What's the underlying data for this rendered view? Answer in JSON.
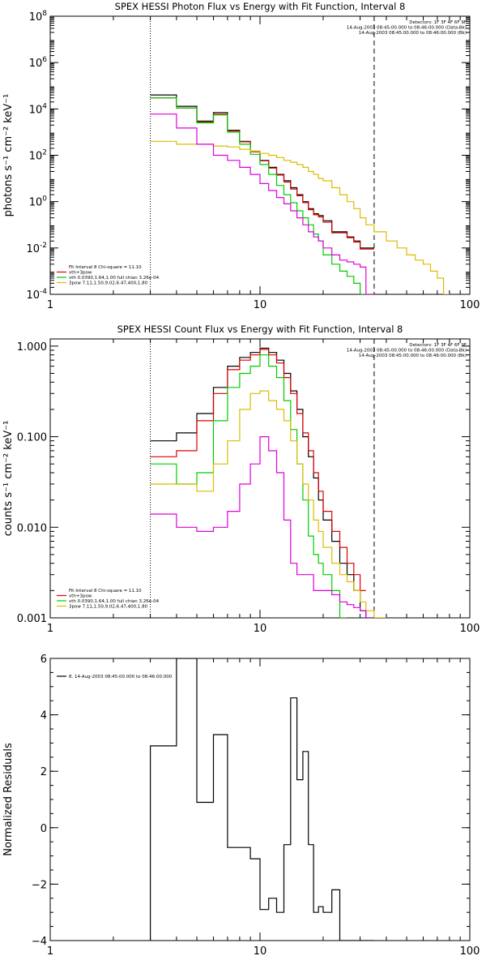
{
  "chart_data": [
    {
      "type": "line",
      "title": "SPEX HESSI Photon Flux vs Energy with Fit Function, Interval 8",
      "ylabel": "photons s⁻¹ cm⁻² keV⁻¹",
      "xscale": "log",
      "yscale": "log",
      "xlim": [
        1,
        100
      ],
      "ylim": [
        0.0001,
        100000000
      ],
      "xticks": [
        {
          "v": 1,
          "t": "1"
        },
        {
          "v": 10,
          "t": "10"
        },
        {
          "v": 100,
          "t": "100"
        }
      ],
      "yticks": [
        {
          "v": 0.0001,
          "b": "10",
          "e": "-4"
        },
        {
          "v": 0.01,
          "b": "10",
          "e": "-2"
        },
        {
          "v": 1,
          "b": "10",
          "e": "0"
        },
        {
          "v": 100,
          "b": "10",
          "e": "2"
        },
        {
          "v": 10000,
          "b": "10",
          "e": "4"
        },
        {
          "v": 1000000,
          "b": "10",
          "e": "6"
        },
        {
          "v": 100000000,
          "b": "10",
          "e": "8"
        }
      ],
      "vlines": [
        {
          "x": 3,
          "style": "dotted"
        },
        {
          "x": 35,
          "style": "dashed"
        }
      ],
      "annotations_right": [
        "Detectors: 1F 3F 4F 6F 9F",
        "14-Aug-2003 08:45:00.000 to 08:46:00.000 (Data-Bk)",
        "14-Aug-2003 08:45:00.000 to 08:46:00.000 (Bk)"
      ],
      "legend": [
        {
          "text": "Fit Interval 8   Chi-square = 11.10",
          "color": ""
        },
        {
          "text": "vth+3pow",
          "color": "#dd0000"
        },
        {
          "text": "vth 0.0390,1.64,1.00  full chian 3.26e-04",
          "color": "#00cc00"
        },
        {
          "text": "3pow 7.11,1.50,9.02,6.47,400,1.80",
          "color": "#ddbb00"
        }
      ],
      "edges": [
        3,
        4,
        5,
        6,
        7,
        8,
        9,
        10,
        11,
        12,
        13,
        14,
        15,
        16,
        17,
        18,
        19,
        20,
        22,
        24,
        26,
        28,
        30,
        32,
        35,
        40,
        45,
        50,
        55,
        60,
        65,
        70,
        75,
        80,
        85
      ],
      "series": [
        {
          "color": "#000000",
          "values": [
            40000,
            13000,
            3000,
            7000,
            1200,
            400,
            150,
            60,
            30,
            15,
            8,
            4,
            2,
            1,
            0.5,
            0.3,
            0.25,
            0.15,
            0.05,
            0.05,
            0.03,
            0.02,
            0.01,
            0.01,
            null,
            null,
            null,
            null,
            null,
            null,
            null,
            null,
            null,
            null
          ]
        },
        {
          "color": "#dd0000",
          "values": [
            30000,
            11000,
            2700,
            6000,
            1100,
            380,
            140,
            58,
            28,
            14,
            7,
            3.5,
            1.8,
            0.9,
            0.45,
            0.27,
            0.22,
            0.13,
            0.045,
            0.045,
            0.028,
            0.018,
            0.009,
            0.009,
            null,
            null,
            null,
            null,
            null,
            null,
            null,
            null,
            null,
            null
          ]
        },
        {
          "color": "#00cc00",
          "values": [
            30000,
            11000,
            2500,
            5500,
            1000,
            300,
            110,
            40,
            15,
            5,
            2,
            0.9,
            0.4,
            0.2,
            0.1,
            0.04,
            0.02,
            0.005,
            0.002,
            0.001,
            0.0006,
            0.0003,
            0.0001,
            null,
            null,
            null,
            null,
            null,
            null,
            null,
            null,
            null,
            null,
            null
          ]
        },
        {
          "color": "#ddbb00",
          "values": [
            400,
            300,
            300,
            250,
            230,
            180,
            150,
            120,
            100,
            80,
            60,
            50,
            40,
            30,
            20,
            15,
            10,
            8,
            4,
            2,
            1,
            0.5,
            0.2,
            0.1,
            0.05,
            0.02,
            0.01,
            0.005,
            0.003,
            0.002,
            0.001,
            0.0005,
            0.0001,
            null
          ]
        },
        {
          "color": "#dd00dd",
          "values": [
            6000,
            1500,
            300,
            100,
            60,
            30,
            15,
            6,
            3,
            1.5,
            0.8,
            0.4,
            0.2,
            0.1,
            0.05,
            0.03,
            0.02,
            0.01,
            0.005,
            0.003,
            0.0025,
            0.002,
            0.0015,
            0.0001,
            null,
            null,
            null,
            null,
            null,
            null,
            null,
            null,
            null,
            null
          ]
        }
      ]
    },
    {
      "type": "line",
      "title": "SPEX HESSI Count Flux vs Energy with Fit Function, Interval 8",
      "ylabel": "counts s⁻¹ cm⁻² keV⁻¹",
      "xscale": "log",
      "yscale": "log",
      "xlim": [
        1,
        100
      ],
      "ylim": [
        0.001,
        1.2
      ],
      "xticks": [
        {
          "v": 1,
          "t": "1"
        },
        {
          "v": 10,
          "t": "10"
        },
        {
          "v": 100,
          "t": "100"
        }
      ],
      "yticks": [
        {
          "v": 0.001,
          "t": "0.001"
        },
        {
          "v": 0.01,
          "t": "0.010"
        },
        {
          "v": 0.1,
          "t": "0.100"
        },
        {
          "v": 1,
          "t": "1.000"
        }
      ],
      "vlines": [
        {
          "x": 3,
          "style": "dotted"
        },
        {
          "x": 35,
          "style": "dashed"
        }
      ],
      "annotations_right": [
        "Detectors: 1F 3F 4F 6F 9F",
        "14-Aug-2003 08:45:00.000 to 08:46:00.000 (Data-Bk)",
        "14-Aug-2003 08:45:00.000 to 08:46:00.000 (Bk)"
      ],
      "legend": [
        {
          "text": "Fit Interval 8   Chi-square = 11.10",
          "color": ""
        },
        {
          "text": "vth+3pow",
          "color": "#dd0000"
        },
        {
          "text": "vth 0.0390,1.64,1.00  full chian 3.26e-04",
          "color": "#00cc00"
        },
        {
          "text": "3pow 7.11,1.50,9.02,6.47,400,1.80",
          "color": "#ddbb00"
        }
      ],
      "edges": [
        3,
        4,
        5,
        6,
        7,
        8,
        9,
        10,
        11,
        12,
        13,
        14,
        15,
        16,
        17,
        18,
        19,
        20,
        22,
        24,
        26,
        28,
        30,
        32,
        35,
        40,
        45,
        50,
        55,
        60,
        65,
        70,
        75,
        80,
        85
      ],
      "series": [
        {
          "color": "#000000",
          "values": [
            0.09,
            0.11,
            0.18,
            0.35,
            0.6,
            0.75,
            0.85,
            0.95,
            0.85,
            0.7,
            0.5,
            0.32,
            0.2,
            0.1,
            0.06,
            0.035,
            0.02,
            0.012,
            0.007,
            0.004,
            0.003,
            0.002,
            0.0012,
            0.001,
            null,
            null,
            null,
            null,
            null,
            null,
            null,
            null,
            null,
            null
          ]
        },
        {
          "color": "#dd0000",
          "values": [
            0.06,
            0.07,
            0.15,
            0.3,
            0.55,
            0.7,
            0.8,
            0.92,
            0.8,
            0.65,
            0.45,
            0.3,
            0.18,
            0.11,
            0.07,
            0.04,
            0.025,
            0.015,
            0.009,
            0.006,
            0.004,
            0.003,
            0.002,
            null,
            null,
            null,
            null,
            null,
            null,
            null,
            null,
            null,
            null,
            null
          ]
        },
        {
          "color": "#00cc00",
          "values": [
            0.05,
            0.03,
            0.04,
            0.15,
            0.35,
            0.5,
            0.6,
            0.8,
            0.6,
            0.45,
            0.25,
            0.12,
            0.05,
            0.02,
            0.008,
            0.005,
            0.004,
            0.003,
            0.002,
            0.001,
            null,
            null,
            null,
            null,
            null,
            null,
            null,
            null,
            null,
            null,
            null,
            null,
            null,
            null
          ]
        },
        {
          "color": "#ddbb00",
          "values": [
            0.03,
            0.03,
            0.025,
            0.05,
            0.09,
            0.2,
            0.3,
            0.32,
            0.25,
            0.2,
            0.15,
            0.09,
            0.05,
            0.03,
            0.02,
            0.012,
            0.009,
            0.006,
            0.004,
            0.003,
            0.0025,
            0.002,
            0.0015,
            0.0012,
            0.001,
            null,
            null,
            null,
            null,
            null,
            null,
            null,
            null,
            null
          ]
        },
        {
          "color": "#dd00dd",
          "values": [
            0.014,
            0.01,
            0.009,
            0.01,
            0.015,
            0.03,
            0.05,
            0.1,
            0.07,
            0.04,
            0.012,
            0.004,
            0.003,
            0.003,
            0.003,
            0.002,
            0.002,
            0.002,
            0.0018,
            0.0015,
            0.0014,
            0.0013,
            0.0012,
            0.001,
            null,
            null,
            null,
            null,
            null,
            null,
            null,
            null,
            null,
            null
          ]
        }
      ]
    },
    {
      "type": "line",
      "title": "",
      "ylabel": "Normalized Residuals",
      "xscale": "log",
      "yscale": "linear",
      "xlim": [
        1,
        100
      ],
      "ylim": [
        -4,
        6
      ],
      "xticks": [
        {
          "v": 1,
          "t": "1"
        },
        {
          "v": 10,
          "t": "10"
        },
        {
          "v": 100,
          "t": "100"
        }
      ],
      "yticks": [
        {
          "v": -4,
          "t": "−4"
        },
        {
          "v": -2,
          "t": "−2"
        },
        {
          "v": 0,
          "t": "0"
        },
        {
          "v": 2,
          "t": "2"
        },
        {
          "v": 4,
          "t": "4"
        },
        {
          "v": 6,
          "t": "6"
        }
      ],
      "legend": [
        {
          "text": "8. 14-Aug-2003 08:45:00.000 to 08:46:00.000",
          "color": "#000000"
        }
      ],
      "edges": [
        3,
        4,
        5,
        6,
        7,
        8,
        9,
        10,
        11,
        12,
        13,
        14,
        15,
        16,
        17,
        18,
        19,
        20,
        22,
        24,
        26,
        28,
        30,
        32,
        35
      ],
      "series": [
        {
          "color": "#000000",
          "values": [
            2.9,
            6.0,
            0.9,
            3.3,
            -0.7,
            -0.7,
            -1.1,
            -2.9,
            -2.5,
            -3.0,
            -0.6,
            4.6,
            1.7,
            2.7,
            -0.6,
            -3.0,
            -2.8,
            -3.0,
            -2.2,
            -4.0,
            -4.0,
            -4.0,
            -4.0,
            -4.0
          ],
          "drop_at_start": -4,
          "drop_at_end": -4
        }
      ]
    }
  ]
}
